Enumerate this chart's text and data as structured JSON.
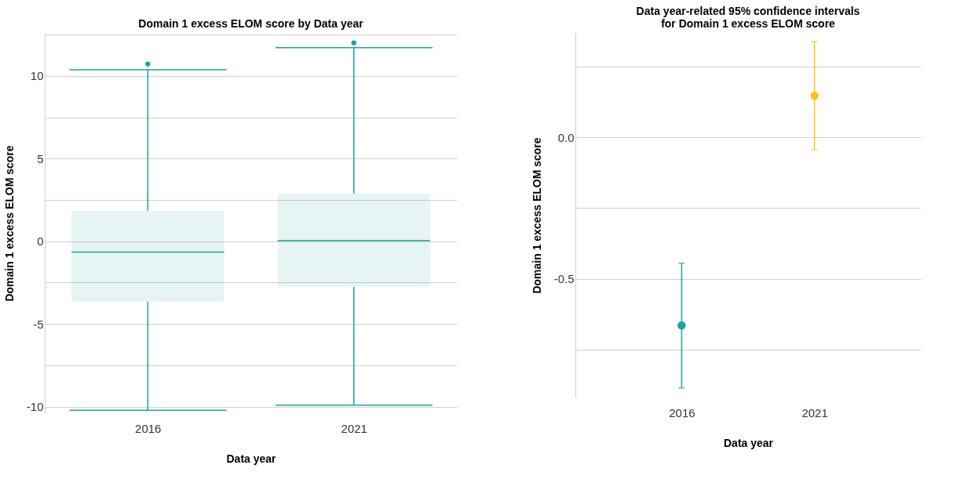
{
  "chart_data": [
    {
      "type": "box",
      "title": "Domain 1 excess ELOM score by Data year",
      "xlabel": "Data year",
      "ylabel": "Domain 1 excess ELOM score",
      "categories": [
        "2016",
        "2021"
      ],
      "series": [
        {
          "color": "#1fa39b",
          "boxes": [
            {
              "low": -10.22,
              "q1": -3.65,
              "median": -0.66,
              "q3": 1.83,
              "high": 10.37,
              "outliers": [
                10.72
              ]
            },
            {
              "low": -9.91,
              "q1": -2.75,
              "median": 0.04,
              "q3": 2.88,
              "high": 11.71,
              "outliers": [
                12.0
              ]
            }
          ]
        }
      ],
      "ylim": [
        -10.4,
        12.6
      ],
      "yticks": [
        -10,
        {
          "value": -7.5,
          "label": null
        },
        -5,
        {
          "value": -2.5,
          "label": null
        },
        0,
        {
          "value": 2.5,
          "label": null
        },
        5,
        {
          "value": 7.5,
          "label": null
        },
        10,
        {
          "value": 12.5,
          "label": null
        }
      ],
      "grid": "y"
    },
    {
      "type": "scatter",
      "title": "Data year-related 95% confidence intervals\nfor  Domain 1 excess ELOM score",
      "xlabel": "Data year",
      "ylabel": "Domain 1 excess ELOM score",
      "categories": [
        "2016",
        "2021"
      ],
      "values": [
        -0.665,
        0.148
      ],
      "errors": [
        [
          -0.886,
          -0.445
        ],
        [
          -0.043,
          0.34
        ]
      ],
      "colors": [
        "#1fa39b",
        "#fcc419"
      ],
      "marker": "circle",
      "ylim": [
        -0.92,
        0.37
      ],
      "yticks": [
        {
          "value": -0.75,
          "label": null
        },
        {
          "value": -0.5,
          "label": "-0.5"
        },
        {
          "value": -0.25,
          "label": null
        },
        {
          "value": 0,
          "label": "0.0"
        },
        {
          "value": 0.25,
          "label": null
        }
      ],
      "grid": "y"
    }
  ]
}
